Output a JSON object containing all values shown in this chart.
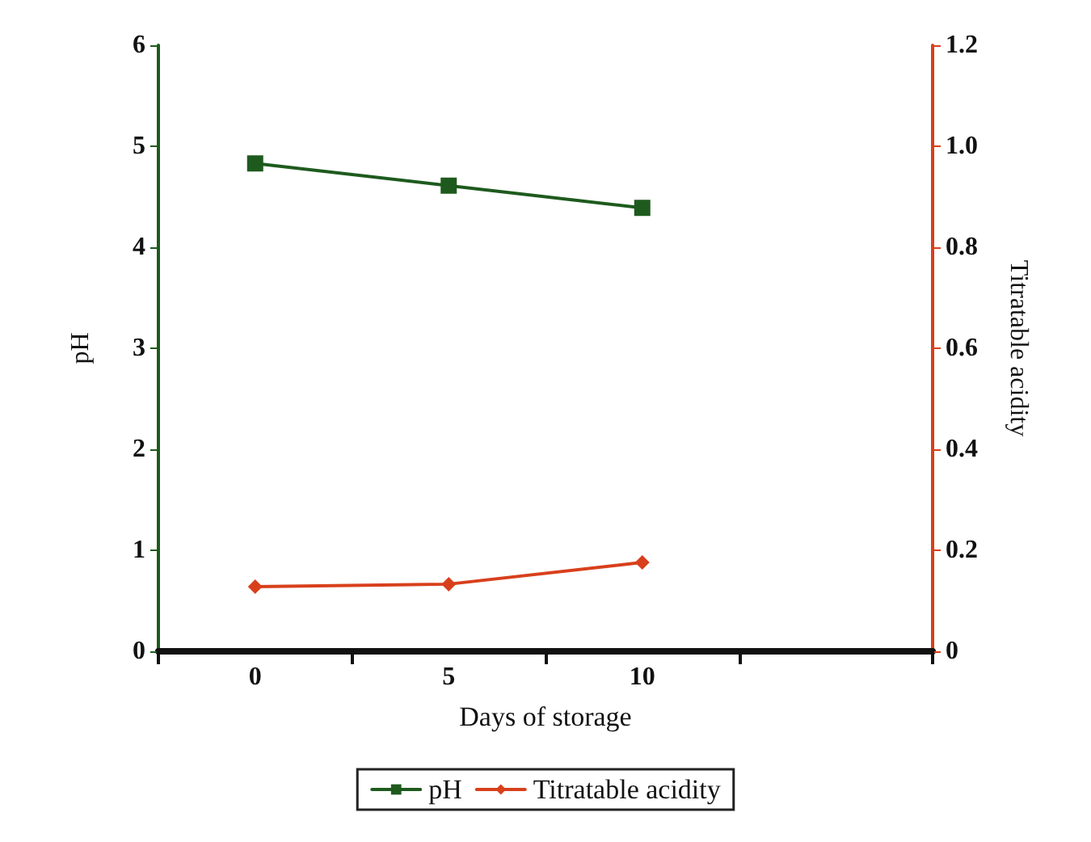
{
  "chart_data": {
    "type": "line",
    "xlabel": "Days of storage",
    "ylabel": "pH",
    "y2label": "Titratable acidity",
    "categories": [
      "0",
      "5",
      "10",
      null
    ],
    "series": [
      {
        "name": "pH",
        "color": "#1e5a1e",
        "values": [
          4.83,
          4.61,
          4.39,
          null
        ],
        "marker": "square"
      },
      {
        "name": "Titratable acidity",
        "color": "#d8401c",
        "values": [
          0.128,
          0.133,
          0.176,
          null
        ],
        "axis": "y2",
        "marker": "diamond"
      }
    ],
    "ylim": [
      0,
      6
    ],
    "yticks": [
      0,
      1,
      2,
      3,
      4,
      5,
      6
    ],
    "y2lim": [
      0,
      1.2
    ],
    "y2ticks": [
      0,
      0.2,
      0.4,
      0.6,
      0.8,
      {
        "value": 1,
        "label": "1.0"
      },
      1.2
    ],
    "legend": "bottom",
    "grid": false
  }
}
